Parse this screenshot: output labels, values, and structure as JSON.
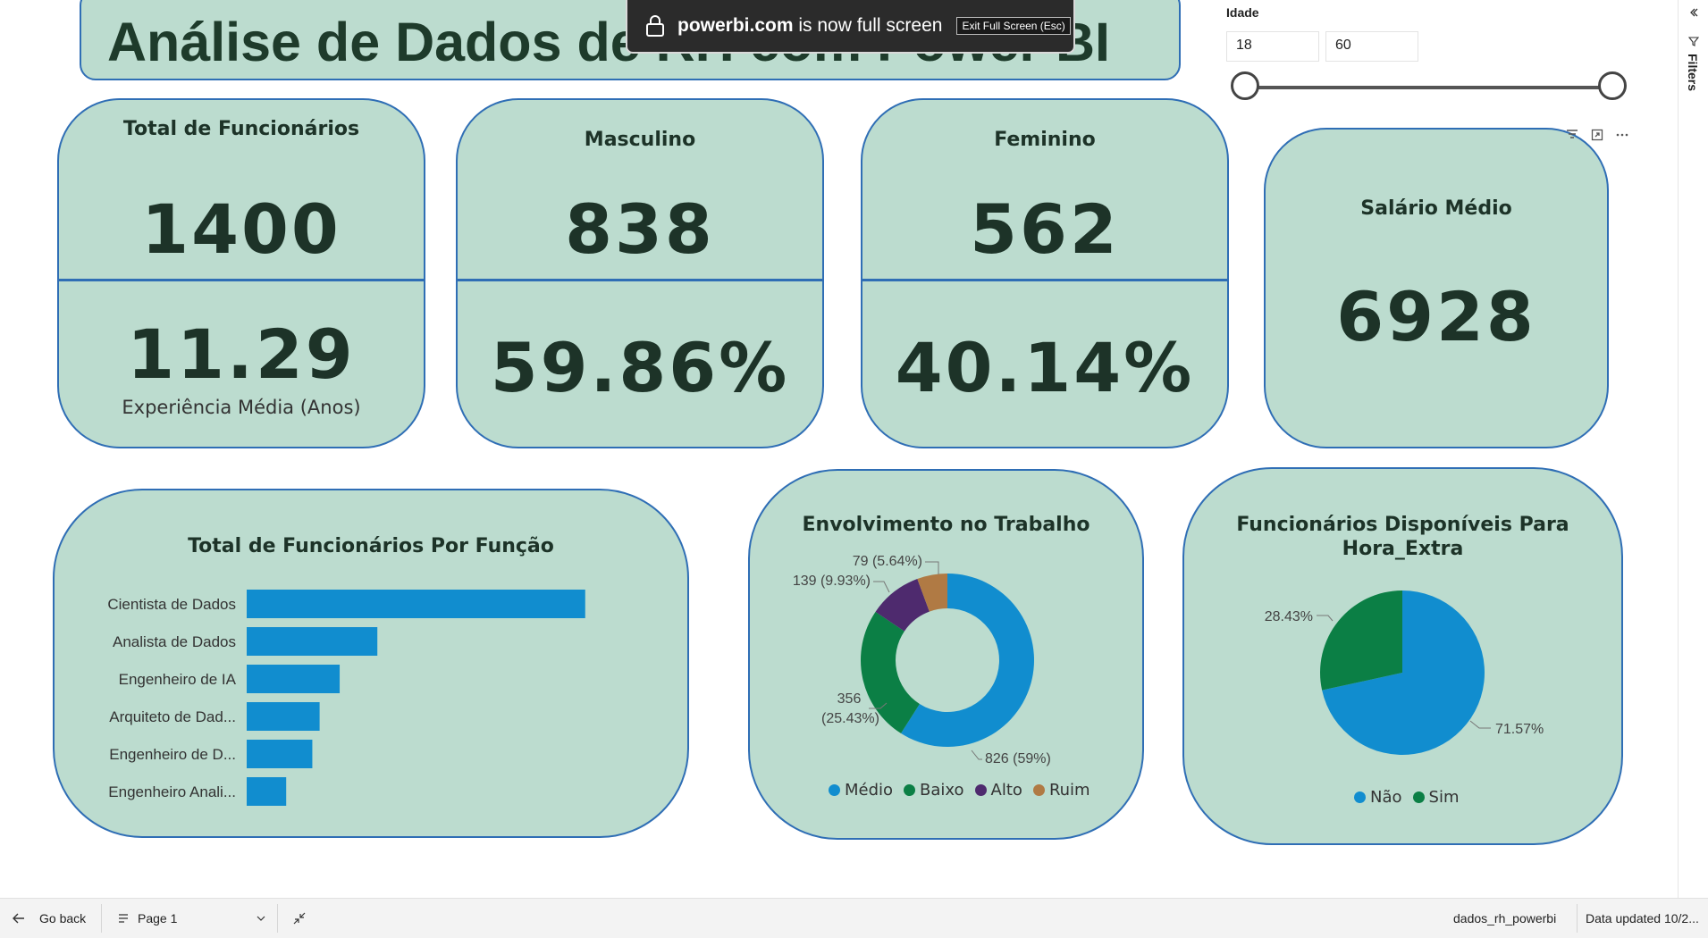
{
  "title": "Análise de Dados de RH com Power BI",
  "toast": {
    "site": "powerbi.com",
    "message": " is now full screen",
    "exit_label": "Exit Full Screen (Esc)"
  },
  "kpis": {
    "total": {
      "title": "Total de Funcionários",
      "value": "1400",
      "sub_value": "11.29",
      "sub_label": "Experiência Média (Anos)"
    },
    "male": {
      "title": "Masculino",
      "value": "838",
      "percent": "59.86%"
    },
    "female": {
      "title": "Feminino",
      "value": "562",
      "percent": "40.14%"
    },
    "salary": {
      "title": "Salário Médio",
      "value": "6928"
    }
  },
  "slicer": {
    "label": "Idade",
    "min_value": "18",
    "max_value": "60",
    "range": [
      18,
      60
    ],
    "selected": [
      18,
      60
    ]
  },
  "filters_label": "Filters",
  "visual_header_icons": [
    "filter-icon",
    "focus-mode-icon",
    "more-options-icon"
  ],
  "bar_chart": {
    "title": "Total de Funcionários Por Função",
    "chart_data": {
      "type": "bar",
      "orientation": "horizontal",
      "categories": [
        "Cientista de Dados",
        "Analista de Dados",
        "Engenheiro de IA",
        "Arquiteto de Dad...",
        "Engenheiro de D...",
        "Engenheiro Anali..."
      ],
      "values": [
        557,
        215,
        153,
        120,
        108,
        65
      ],
      "xlim": [
        0,
        600
      ],
      "color": "#118dcf"
    }
  },
  "donut_chart": {
    "title": "Envolvimento no Trabalho",
    "chart_data": {
      "type": "pie",
      "variant": "donut",
      "categories": [
        "Médio",
        "Baixo",
        "Alto",
        "Ruim"
      ],
      "values": [
        826,
        356,
        139,
        79
      ],
      "percents": [
        "59%",
        "25.43%",
        "9.93%",
        "5.64%"
      ],
      "colors": [
        "#118dcf",
        "#0b7f45",
        "#4e2a6e",
        "#b07a44"
      ],
      "labels": [
        "826 (59%)",
        "356",
        "(25.43%)",
        "139 (9.93%)",
        "79 (5.64%)"
      ]
    }
  },
  "pie_chart": {
    "title_line1": "Funcionários Disponíveis Para",
    "title_line2": "Hora_Extra",
    "chart_data": {
      "type": "pie",
      "categories": [
        "Não",
        "Sim"
      ],
      "values": [
        71.57,
        28.43
      ],
      "labels": [
        "71.57%",
        "28.43%"
      ],
      "colors": [
        "#118dcf",
        "#0b7f45"
      ]
    }
  },
  "bottom_bar": {
    "go_back": "Go back",
    "page": "Page 1",
    "dataset": "dados_rh_powerbi",
    "updated": "Data updated 10/2..."
  },
  "colors": {
    "card_bg": "#bcdccf",
    "card_border": "#2f6eb5",
    "accent_blue": "#118dcf"
  }
}
